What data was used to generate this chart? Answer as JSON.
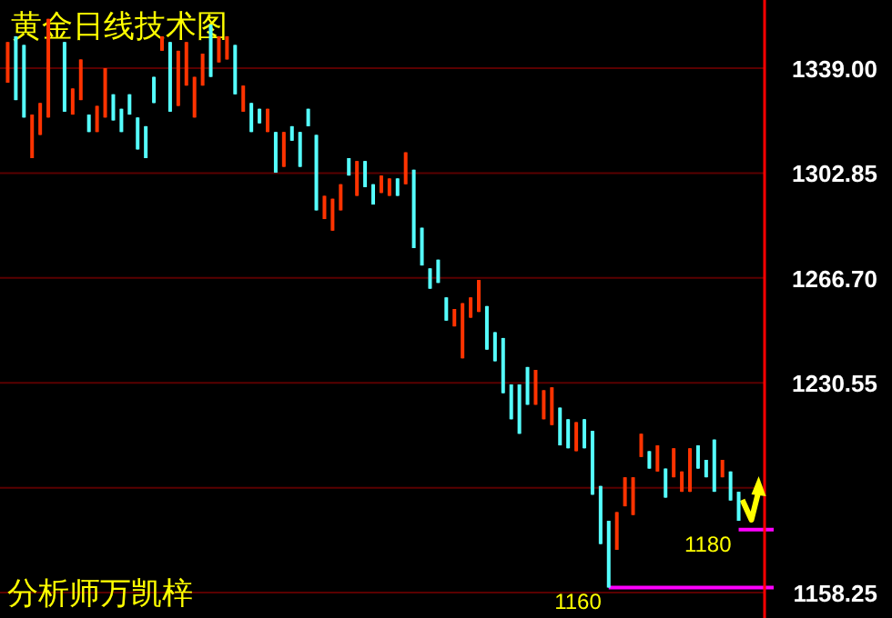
{
  "chart_data": {
    "type": "candlestick",
    "title": "黄金日线技术图",
    "annotations": [
      "分析师万凯梓"
    ],
    "categories": [
      null,
      null,
      null,
      null,
      null,
      null,
      null,
      null,
      null,
      null,
      null,
      null,
      null,
      null,
      null,
      null,
      null,
      null,
      null,
      null,
      null,
      null,
      null,
      null,
      null,
      null,
      null,
      null,
      null,
      null,
      null,
      null,
      null,
      null,
      null,
      null,
      null,
      null,
      null,
      null,
      null,
      null,
      null,
      null,
      null,
      null,
      null,
      null,
      null,
      null,
      null,
      null,
      null,
      null,
      null,
      null,
      null,
      null,
      null,
      null,
      null,
      null,
      null,
      null,
      null,
      null,
      null,
      null,
      null,
      null,
      null,
      null,
      null,
      null,
      null,
      null,
      null,
      null,
      null,
      null,
      null,
      null,
      null,
      null,
      null,
      null,
      null,
      null,
      null,
      null,
      null
    ],
    "ohlc": [
      [
        1334,
        1348,
        1334,
        1348
      ],
      [
        1350,
        1350,
        1328,
        1328
      ],
      [
        1347,
        1347,
        1322,
        1322
      ],
      [
        1308,
        1323,
        1308,
        1323
      ],
      [
        1316,
        1327,
        1316,
        1327
      ],
      [
        1322,
        1356,
        1322,
        1356
      ],
      null,
      [
        1348,
        1348,
        1324,
        1324
      ],
      [
        1323,
        1332,
        1323,
        1332
      ],
      [
        1328,
        1342,
        1328,
        1342
      ],
      [
        1323,
        1323,
        1317,
        1317
      ],
      [
        1317,
        1326,
        1317,
        1326
      ],
      [
        1322,
        1339,
        1322,
        1339
      ],
      [
        1330,
        1330,
        1321,
        1321
      ],
      [
        1325,
        1325,
        1317,
        1317
      ],
      [
        1330,
        1330,
        1323,
        1323
      ],
      [
        1322,
        1322,
        1311,
        1311
      ],
      [
        1319,
        1319,
        1308,
        1308
      ],
      [
        1336,
        1336,
        1327,
        1327
      ],
      [
        1345,
        1350,
        1345,
        1350
      ],
      [
        1348,
        1348,
        1324,
        1324
      ],
      [
        1326,
        1345,
        1326,
        1345
      ],
      [
        1333,
        1348,
        1333,
        1348
      ],
      [
        1322,
        1336,
        1322,
        1336
      ],
      [
        1333,
        1344,
        1333,
        1344
      ],
      [
        1354,
        1354,
        1336,
        1336
      ],
      [
        1341,
        1350,
        1341,
        1350
      ],
      [
        1342,
        1350,
        1342,
        1350
      ],
      [
        1347,
        1347,
        1330,
        1330
      ],
      [
        1324,
        1333,
        1324,
        1333
      ],
      [
        1327,
        1327,
        1317,
        1317
      ],
      [
        1325,
        1325,
        1320,
        1320
      ],
      [
        1317,
        1325,
        1317,
        1325
      ],
      [
        1317,
        1317,
        1303,
        1303
      ],
      [
        1305,
        1317,
        1305,
        1317
      ],
      [
        1319,
        1319,
        1314,
        1314
      ],
      [
        1317,
        1317,
        1305,
        1305
      ],
      [
        1325,
        1325,
        1319,
        1319
      ],
      [
        1316,
        1316,
        1290,
        1290
      ],
      [
        1287,
        1295,
        1287,
        1295
      ],
      [
        1283,
        1294,
        1283,
        1294
      ],
      [
        1290,
        1299,
        1290,
        1299
      ],
      [
        1308,
        1308,
        1302,
        1302
      ],
      [
        1295,
        1307,
        1295,
        1307
      ],
      [
        1307,
        1307,
        1298,
        1298
      ],
      [
        1299,
        1299,
        1292,
        1292
      ],
      [
        1296,
        1302,
        1296,
        1302
      ],
      [
        1295,
        1301,
        1295,
        1301
      ],
      [
        1301,
        1301,
        1295,
        1295
      ],
      [
        1299,
        1310,
        1299,
        1310
      ],
      [
        1304,
        1304,
        1277,
        1277
      ],
      [
        1284,
        1284,
        1271,
        1271
      ],
      [
        1270,
        1270,
        1263,
        1263
      ],
      [
        1273,
        1273,
        1265,
        1265
      ],
      [
        1260,
        1260,
        1252,
        1252
      ],
      [
        1250,
        1256,
        1250,
        1256
      ],
      [
        1239,
        1258,
        1239,
        1258
      ],
      [
        1253,
        1260,
        1253,
        1260
      ],
      [
        1255,
        1266,
        1255,
        1266
      ],
      [
        1257,
        1257,
        1242,
        1242
      ],
      [
        1248,
        1248,
        1238,
        1238
      ],
      [
        1246,
        1246,
        1227,
        1227
      ],
      [
        1230,
        1230,
        1218,
        1218
      ],
      [
        1230,
        1230,
        1213,
        1213
      ],
      [
        1236,
        1236,
        1223,
        1223
      ],
      [
        1223,
        1235,
        1223,
        1235
      ],
      [
        1218,
        1228,
        1218,
        1228
      ],
      [
        1216,
        1229,
        1216,
        1229
      ],
      [
        1222,
        1222,
        1209,
        1209
      ],
      [
        1218,
        1218,
        1208,
        1208
      ],
      [
        1207,
        1217,
        1207,
        1217
      ],
      [
        1218,
        1218,
        1208,
        1208
      ],
      [
        1214,
        1214,
        1192,
        1192
      ],
      [
        1195,
        1195,
        1175,
        1175
      ],
      [
        1183,
        1183,
        1160,
        1160
      ],
      [
        1173,
        1186,
        1173,
        1186
      ],
      [
        1188,
        1198,
        1188,
        1198
      ],
      [
        1185,
        1198,
        1185,
        1198
      ],
      [
        1205,
        1213,
        1205,
        1213
      ],
      [
        1207,
        1207,
        1201,
        1201
      ],
      [
        1200,
        1209,
        1200,
        1209
      ],
      [
        1201,
        1201,
        1191,
        1191
      ],
      [
        1198,
        1208,
        1198,
        1208
      ],
      [
        1193,
        1200,
        1193,
        1200
      ],
      [
        1193,
        1208,
        1193,
        1208
      ],
      [
        1209,
        1209,
        1201,
        1201
      ],
      [
        1204,
        1204,
        1198,
        1198
      ],
      [
        1211,
        1211,
        1193,
        1193
      ],
      [
        1198,
        1204,
        1198,
        1204
      ],
      [
        1200,
        1200,
        1190,
        1190
      ],
      [
        1193,
        1193,
        1183,
        1183
      ]
    ],
    "colors": [
      "#ff3300",
      "#55ffff",
      "#55ffff",
      "#ff3300",
      "#ff3300",
      "#ff3300",
      null,
      "#55ffff",
      "#ff3300",
      "#ff3300",
      "#55ffff",
      "#ff3300",
      "#ff3300",
      "#55ffff",
      "#55ffff",
      "#55ffff",
      "#55ffff",
      "#55ffff",
      "#55ffff",
      "#ff3300",
      "#55ffff",
      "#ff3300",
      "#ff3300",
      "#ff3300",
      "#ff3300",
      "#55ffff",
      "#ff3300",
      "#ff3300",
      "#55ffff",
      "#ff3300",
      "#55ffff",
      "#55ffff",
      "#ff3300",
      "#55ffff",
      "#ff3300",
      "#55ffff",
      "#55ffff",
      "#55ffff",
      "#55ffff",
      "#ff3300",
      "#ff3300",
      "#ff3300",
      "#55ffff",
      "#ff3300",
      "#55ffff",
      "#55ffff",
      "#ff3300",
      "#ff3300",
      "#55ffff",
      "#ff3300",
      "#55ffff",
      "#55ffff",
      "#55ffff",
      "#55ffff",
      "#55ffff",
      "#ff3300",
      "#ff3300",
      "#ff3300",
      "#ff3300",
      "#55ffff",
      "#55ffff",
      "#55ffff",
      "#55ffff",
      "#55ffff",
      "#55ffff",
      "#ff3300",
      "#ff3300",
      "#ff3300",
      "#55ffff",
      "#55ffff",
      "#ff3300",
      "#55ffff",
      "#55ffff",
      "#55ffff",
      "#55ffff",
      "#ff3300",
      "#ff3300",
      "#ff3300",
      "#ff3300",
      "#55ffff",
      "#ff3300",
      "#55ffff",
      "#ff3300",
      "#ff3300",
      "#ff3300",
      "#55ffff",
      "#55ffff",
      "#55ffff",
      "#ff3300",
      "#55ffff",
      "#55ffff"
    ],
    "ylim": [
      1149.5,
      1362.5
    ],
    "yticks": [
      {
        "value": 1339,
        "label": "1339.00"
      },
      {
        "value": 1302.85,
        "label": "1302.85"
      },
      {
        "value": 1266.7,
        "label": "1266.70"
      },
      {
        "value": 1230.55,
        "label": "1230.55"
      },
      {
        "value": 1194.4,
        "label": null
      },
      {
        "value": 1158.25,
        "label": "1158.25"
      }
    ],
    "grid": "y",
    "ref_lines": [
      {
        "axis": "y",
        "value": 1180,
        "label": "1180",
        "color": "#ff00ff"
      },
      {
        "axis": "y",
        "value": 1160,
        "label": "1160",
        "color": "#ff00ff"
      }
    ]
  }
}
